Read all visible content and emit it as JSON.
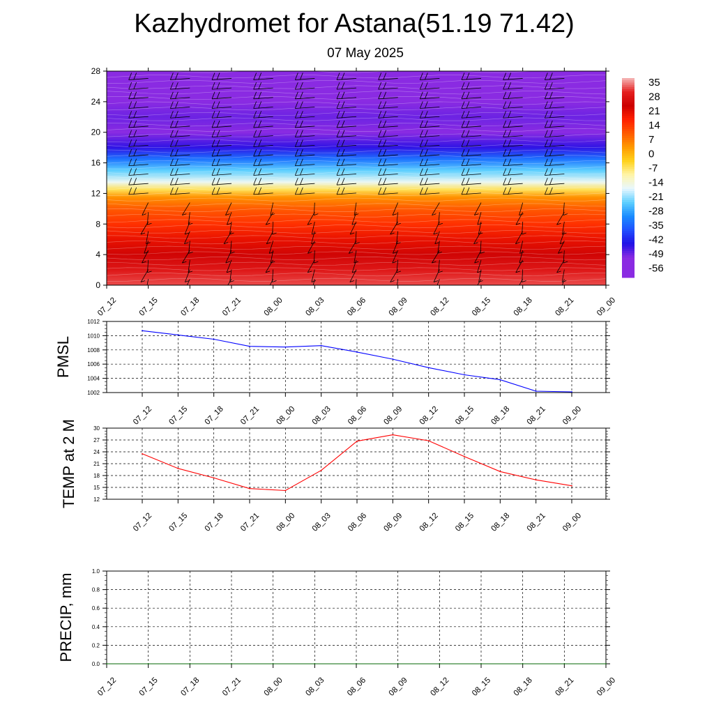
{
  "header": {
    "title": "Kazhydromet for Astana(51.19 71.42)",
    "subtitle": "07 May 2025"
  },
  "time_labels": [
    "07_12",
    "07_15",
    "07_18",
    "07_21",
    "08_00",
    "08_03",
    "08_06",
    "08_09",
    "08_12",
    "08_15",
    "08_18",
    "08_21",
    "09_00"
  ],
  "chart_data": [
    {
      "type": "heatmap",
      "title": "",
      "xlabel": "",
      "ylabel": "",
      "x_categories": [
        "07_12",
        "07_15",
        "07_18",
        "07_21",
        "08_00",
        "08_03",
        "08_06",
        "08_09",
        "08_12",
        "08_15",
        "08_18",
        "08_21",
        "09_00"
      ],
      "y_ticks": [
        0,
        4,
        8,
        12,
        16,
        20,
        24,
        28
      ],
      "ylim": [
        0,
        28
      ],
      "color_scale": {
        "labels": [
          "35",
          "28",
          "21",
          "14",
          "7",
          "0",
          "-7",
          "-14",
          "-21",
          "-28",
          "-35",
          "-42",
          "-49",
          "-56"
        ],
        "colors": [
          "#f5b8b8",
          "#e52020",
          "#cc0000",
          "#ff2000",
          "#ff5a00",
          "#ff9a00",
          "#ffd21c",
          "#fff5a8",
          "#e8f7ff",
          "#5ed0ff",
          "#1a8cff",
          "#2050ff",
          "#2010e6",
          "#8a2be2"
        ]
      },
      "temperature_profile": [
        {
          "y": 0,
          "t": 30
        },
        {
          "y": 2,
          "t": 26
        },
        {
          "y": 4,
          "t": 22
        },
        {
          "y": 6,
          "t": 17
        },
        {
          "y": 8,
          "t": 12
        },
        {
          "y": 10,
          "t": 7
        },
        {
          "y": 11.5,
          "t": 1
        },
        {
          "y": 12.5,
          "t": -10
        },
        {
          "y": 13.5,
          "t": -20
        },
        {
          "y": 15,
          "t": -28
        },
        {
          "y": 16.5,
          "t": -38
        },
        {
          "y": 18,
          "t": -50
        },
        {
          "y": 20,
          "t": -58
        },
        {
          "y": 22,
          "t": -54
        },
        {
          "y": 24,
          "t": -60
        },
        {
          "y": 26,
          "t": -64
        },
        {
          "y": 28,
          "t": -66
        }
      ],
      "wind_barbs": "shown at every time step and level",
      "grid": false
    },
    {
      "type": "line",
      "ylabel": "PMSL",
      "x": [
        "07_12",
        "07_15",
        "07_18",
        "07_21",
        "08_00",
        "08_03",
        "08_06",
        "08_09",
        "08_12",
        "08_15",
        "08_18",
        "08_21",
        "09_00"
      ],
      "series": [
        {
          "color": "#0000ff",
          "values": [
            1010.7,
            1010.1,
            1009.5,
            1008.5,
            1008.4,
            1008.6,
            1007.7,
            1006.7,
            1005.5,
            1004.5,
            1003.8,
            1002.2,
            1002.1
          ]
        }
      ],
      "y_ticks": [
        1002,
        1004,
        1006,
        1008,
        1010,
        1012
      ],
      "ylim": [
        1002,
        1012
      ],
      "grid": true
    },
    {
      "type": "line",
      "ylabel": "TEMP at 2 M",
      "x": [
        "07_12",
        "07_15",
        "07_18",
        "07_21",
        "08_00",
        "08_03",
        "08_06",
        "08_09",
        "08_12",
        "08_15",
        "08_18",
        "08_21",
        "09_00"
      ],
      "series": [
        {
          "color": "#ff0000",
          "values": [
            23.5,
            19.8,
            17.4,
            14.7,
            14.2,
            19.3,
            26.7,
            28.3,
            26.8,
            22.8,
            19.0,
            16.9,
            15.4
          ]
        }
      ],
      "y_ticks": [
        12,
        15,
        18,
        21,
        24,
        27,
        30
      ],
      "ylim": [
        12,
        30
      ],
      "grid": true
    },
    {
      "type": "line",
      "ylabel": "PRECIP, mm",
      "x": [
        "07_12",
        "07_15",
        "07_18",
        "07_21",
        "08_00",
        "08_03",
        "08_06",
        "08_09",
        "08_12",
        "08_15",
        "08_18",
        "08_21",
        "09_00"
      ],
      "series": [
        {
          "color": "#006400",
          "values": [
            0,
            0,
            0,
            0,
            0,
            0,
            0,
            0,
            0,
            0,
            0,
            0,
            0
          ]
        }
      ],
      "y_tick_labels": [
        "0.0",
        "0.2",
        "0.4",
        "0.6",
        "0.8",
        "1.0"
      ],
      "ylim": [
        0,
        1
      ],
      "grid": true
    }
  ]
}
